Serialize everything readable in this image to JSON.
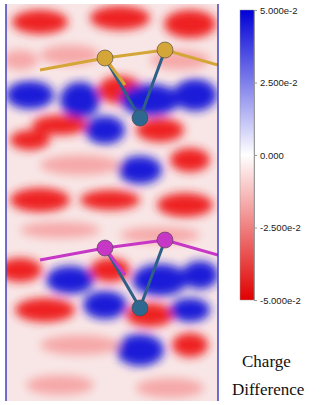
{
  "chart_data": {
    "type": "colorbar",
    "colorbar": {
      "range": [
        -0.05,
        0.05
      ],
      "ticks": [
        {
          "value": 0.05,
          "label": "5.000e-2"
        },
        {
          "value": 0.025,
          "label": "2.500e-2"
        },
        {
          "value": 0,
          "label": "0.000"
        },
        {
          "value": -0.025,
          "label": "-2.500e-2"
        },
        {
          "value": -0.05,
          "label": "-5.000e-2"
        }
      ],
      "colors": [
        "#e00000",
        "#ffffff",
        "#0000d8"
      ]
    },
    "label": [
      "Charge",
      "Difference"
    ]
  }
}
